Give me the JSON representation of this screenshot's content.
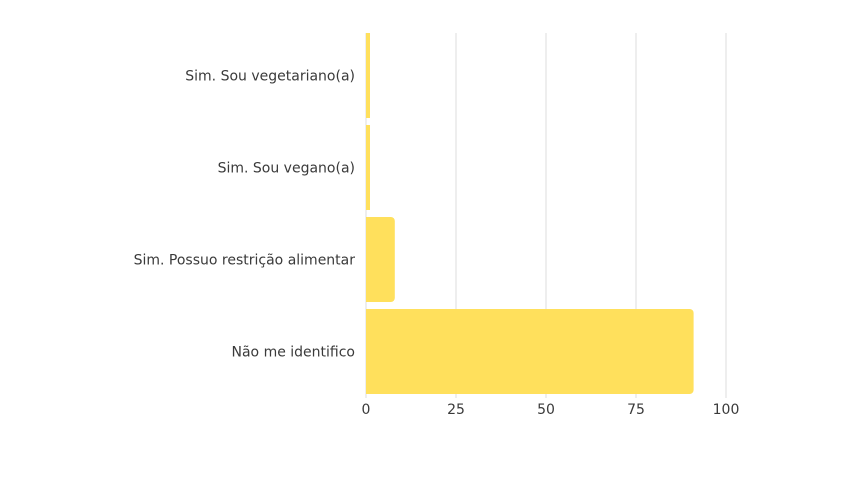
{
  "chart_data": {
    "type": "bar",
    "orientation": "horizontal",
    "categories": [
      "Sim. Sou vegetariano(a)",
      "Sim. Sou vegano(a)",
      "Sim. Possuo restrição alimentar",
      "Não me identifico"
    ],
    "values": [
      1,
      1,
      8,
      91
    ],
    "xlim": [
      0,
      100
    ],
    "xticks": [
      0,
      25,
      50,
      75,
      100
    ],
    "grid": true,
    "legend": "none",
    "bar_color": "#FFE05C",
    "grid_color": "#DCDCDC",
    "title": "",
    "xlabel": "",
    "ylabel": ""
  }
}
